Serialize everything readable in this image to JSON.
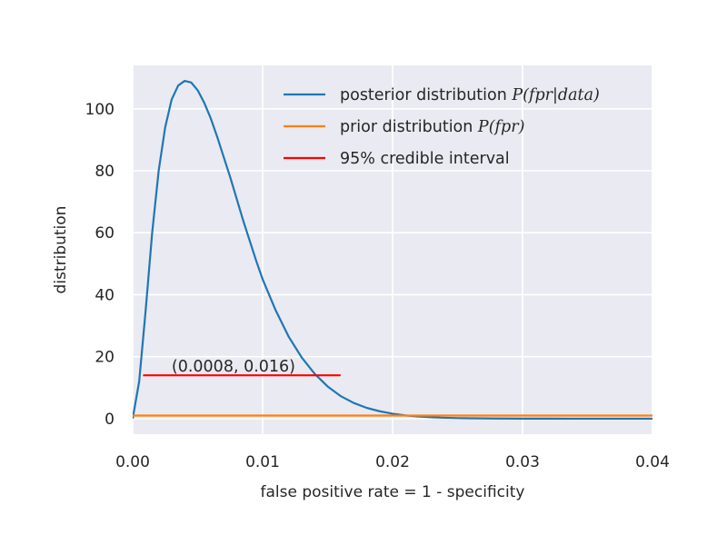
{
  "chart_data": {
    "type": "line",
    "xlabel": "false positive rate = 1 - specificity",
    "ylabel": "distribution",
    "xlim": [
      0.0,
      0.04
    ],
    "ylim": [
      -5,
      114
    ],
    "x_ticks": [
      "0.00",
      "0.01",
      "0.02",
      "0.03",
      "0.04"
    ],
    "x_tick_values": [
      0.0,
      0.01,
      0.02,
      0.03,
      0.04
    ],
    "y_ticks": [
      "0",
      "20",
      "40",
      "60",
      "80",
      "100"
    ],
    "y_tick_values": [
      0,
      20,
      40,
      60,
      80,
      100
    ],
    "grid": true,
    "legend_position": "upper right",
    "series": [
      {
        "name": "posterior distribution P(fpr|data)",
        "color": "#1f77b4",
        "style": "line",
        "x": [
          0.0,
          0.0005,
          0.001,
          0.0015,
          0.002,
          0.0025,
          0.003,
          0.0035,
          0.004,
          0.0045,
          0.005,
          0.0055,
          0.006,
          0.0065,
          0.007,
          0.0075,
          0.008,
          0.0085,
          0.009,
          0.0095,
          0.01,
          0.011,
          0.012,
          0.013,
          0.014,
          0.015,
          0.016,
          0.017,
          0.018,
          0.019,
          0.02,
          0.021,
          0.022,
          0.023,
          0.024,
          0.025,
          0.026,
          0.028,
          0.03,
          0.032,
          0.034,
          0.036,
          0.038,
          0.04
        ],
        "y": [
          0,
          12,
          35,
          60,
          80,
          94,
          103,
          107.5,
          109,
          108.5,
          106,
          102,
          97,
          91,
          84.5,
          78,
          71,
          64,
          57.5,
          51,
          45,
          35,
          26.5,
          19.8,
          14.5,
          10.4,
          7.3,
          5.1,
          3.5,
          2.4,
          1.6,
          1.05,
          0.7,
          0.45,
          0.3,
          0.19,
          0.12,
          0.05,
          0.02,
          0.01,
          0.0,
          0.0,
          0.0,
          0.0
        ]
      },
      {
        "name": "prior distribution P(fpr)",
        "color": "#ff7f0e",
        "style": "line",
        "x": [
          0.0,
          0.04
        ],
        "y": [
          1.0,
          1.0
        ]
      },
      {
        "name": "95% credible interval",
        "color": "#ff0000",
        "style": "line",
        "x": [
          0.0008,
          0.016
        ],
        "y": [
          14,
          14
        ]
      }
    ],
    "legend": [
      {
        "prefix": "posterior distribution ",
        "math": "P(fpr|data)",
        "color": "#1f77b4"
      },
      {
        "prefix": "prior distribution ",
        "math": "P(fpr)",
        "color": "#ff7f0e"
      },
      {
        "prefix": "95% credible interval",
        "math": "",
        "color": "#ff0000"
      }
    ],
    "annotations": [
      {
        "text": "(0.0008, 0.016)",
        "x": 0.003,
        "y": 14
      }
    ]
  },
  "colors": {
    "plot_background": "#eaeaf2",
    "grid": "#ffffff",
    "text": "#262626"
  }
}
